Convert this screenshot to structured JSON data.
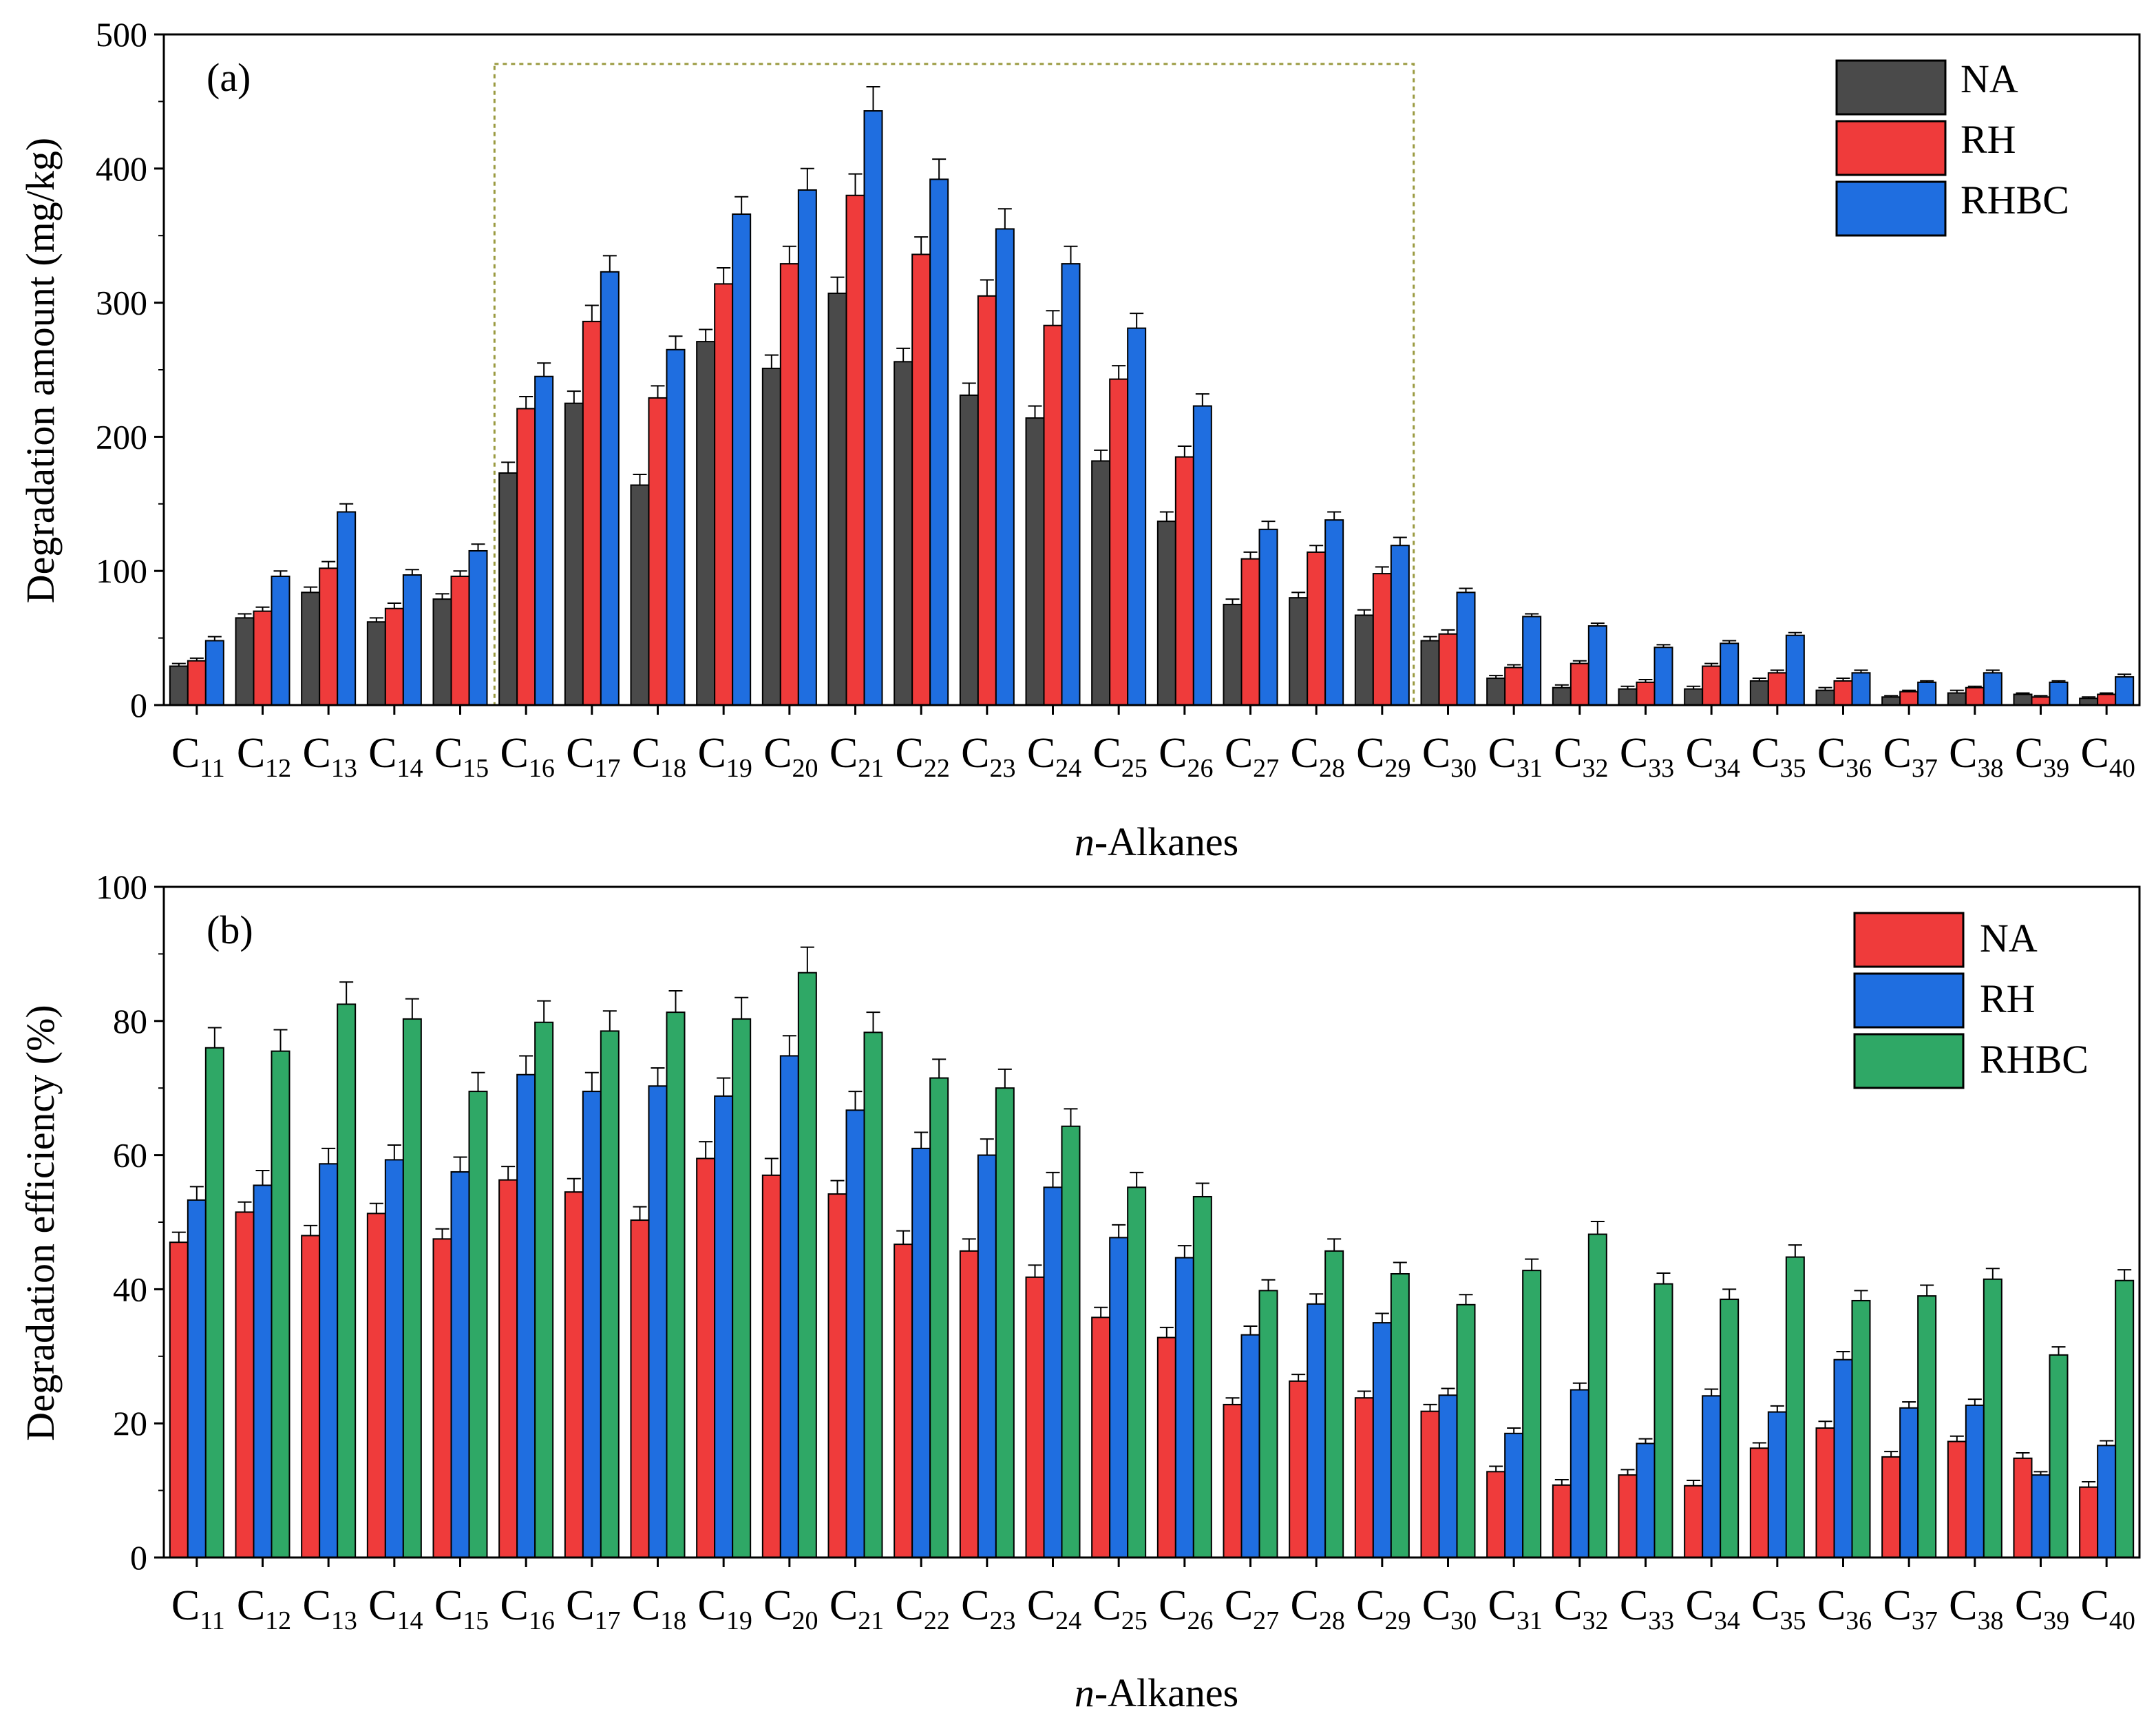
{
  "chart_data": [
    {
      "type": "bar",
      "panel_label": "(a)",
      "title": "",
      "xlabel_prefix": "n",
      "xlabel_rest": "-Alkanes",
      "ylabel": "Degradation amount (mg/kg)",
      "ylim": [
        0,
        500
      ],
      "yticks": [
        "0",
        "100",
        "200",
        "300",
        "400",
        "500"
      ],
      "categories": [
        "C11",
        "C12",
        "C13",
        "C14",
        "C15",
        "C16",
        "C17",
        "C18",
        "C19",
        "C20",
        "C21",
        "C22",
        "C23",
        "C24",
        "C25",
        "C26",
        "C27",
        "C28",
        "C29",
        "C30",
        "C31",
        "C32",
        "C33",
        "C34",
        "C35",
        "C36",
        "C37",
        "C38",
        "C39",
        "C40"
      ],
      "highlight_range": {
        "from": "C16",
        "to": "C29",
        "style": "dotted box"
      },
      "legend": {
        "placement": "top-right"
      },
      "series": [
        {
          "name": "NA",
          "color": "#4a4a4a",
          "values": [
            29,
            65,
            84,
            62,
            79,
            173,
            225,
            164,
            271,
            251,
            307,
            256,
            231,
            214,
            182,
            137,
            75,
            80,
            67,
            48,
            20,
            13,
            12,
            12,
            18,
            11,
            6,
            9,
            8,
            5
          ],
          "errors": [
            2,
            3,
            4,
            3,
            4,
            8,
            9,
            8,
            9,
            10,
            12,
            10,
            9,
            9,
            8,
            7,
            4,
            4,
            4,
            3,
            2,
            2,
            2,
            2,
            2,
            2,
            1,
            2,
            1,
            1
          ]
        },
        {
          "name": "RH",
          "color": "#ef3b3b",
          "values": [
            33,
            70,
            102,
            72,
            96,
            221,
            286,
            229,
            314,
            329,
            380,
            336,
            305,
            283,
            243,
            185,
            109,
            114,
            98,
            53,
            28,
            31,
            17,
            29,
            24,
            18,
            10,
            13,
            6,
            8
          ],
          "errors": [
            2,
            3,
            5,
            4,
            4,
            9,
            12,
            9,
            12,
            13,
            16,
            13,
            12,
            11,
            10,
            8,
            5,
            5,
            5,
            3,
            2,
            2,
            2,
            2,
            2,
            2,
            1,
            1,
            1,
            1
          ]
        },
        {
          "name": "RHBC",
          "color": "#1f6ee0",
          "values": [
            48,
            96,
            144,
            97,
            115,
            245,
            323,
            265,
            366,
            384,
            443,
            392,
            355,
            329,
            281,
            223,
            131,
            138,
            119,
            84,
            66,
            59,
            43,
            46,
            52,
            24,
            17,
            24,
            17,
            21
          ],
          "errors": [
            3,
            4,
            6,
            4,
            5,
            10,
            12,
            10,
            13,
            16,
            18,
            15,
            15,
            13,
            11,
            9,
            6,
            6,
            6,
            3,
            2,
            2,
            2,
            2,
            2,
            2,
            1,
            2,
            1,
            2
          ]
        }
      ]
    },
    {
      "type": "bar",
      "panel_label": "(b)",
      "title": "",
      "xlabel_prefix": "n",
      "xlabel_rest": "-Alkanes",
      "ylabel": "Degradation efficiency (%)",
      "ylim": [
        0,
        100
      ],
      "yticks": [
        "0",
        "20",
        "40",
        "60",
        "80",
        "100"
      ],
      "categories": [
        "C11",
        "C12",
        "C13",
        "C14",
        "C15",
        "C16",
        "C17",
        "C18",
        "C19",
        "C20",
        "C21",
        "C22",
        "C23",
        "C24",
        "C25",
        "C26",
        "C27",
        "C28",
        "C29",
        "C30",
        "C31",
        "C32",
        "C33",
        "C34",
        "C35",
        "C36",
        "C37",
        "C38",
        "C39",
        "C40"
      ],
      "legend": {
        "placement": "top-right"
      },
      "series": [
        {
          "name": "NA",
          "color": "#ef3b3b",
          "values": [
            47,
            51.5,
            48,
            51.3,
            47.5,
            56.3,
            54.5,
            50.3,
            59.5,
            57,
            54.2,
            46.7,
            45.7,
            41.8,
            35.8,
            32.8,
            22.8,
            26.3,
            23.8,
            21.8,
            12.8,
            10.8,
            12.3,
            10.7,
            16.3,
            19.3,
            15,
            17.3,
            14.8,
            10.5
          ],
          "errors": [
            1.5,
            1.5,
            1.5,
            1.5,
            1.5,
            2,
            2,
            2,
            2.5,
            2.5,
            2,
            2,
            1.8,
            1.8,
            1.5,
            1.5,
            1,
            1,
            1,
            1,
            0.8,
            0.8,
            0.8,
            0.8,
            0.8,
            1,
            0.8,
            0.8,
            0.8,
            0.8
          ]
        },
        {
          "name": "RH",
          "color": "#1f6ee0",
          "values": [
            53.3,
            55.5,
            58.7,
            59.3,
            57.5,
            72,
            69.5,
            70.3,
            68.8,
            74.8,
            66.7,
            61,
            60,
            55.2,
            47.7,
            44.7,
            33.2,
            37.8,
            35,
            24.2,
            18.5,
            25,
            17,
            24.1,
            21.7,
            29.5,
            22.3,
            22.7,
            12.3,
            16.7
          ],
          "errors": [
            2,
            2.2,
            2.3,
            2.2,
            2.2,
            2.8,
            2.8,
            2.7,
            2.7,
            3,
            2.8,
            2.4,
            2.4,
            2.2,
            1.9,
            1.8,
            1.3,
            1.5,
            1.4,
            1,
            0.8,
            1,
            0.7,
            1,
            0.9,
            1.2,
            0.9,
            0.9,
            0.5,
            0.7
          ]
        },
        {
          "name": "RHBC",
          "color": "#2fa866",
          "values": [
            76,
            75.5,
            82.5,
            80.3,
            69.5,
            79.8,
            78.5,
            81.3,
            80.3,
            87.2,
            78.3,
            71.5,
            70,
            64.3,
            55.2,
            53.8,
            39.8,
            45.7,
            42.3,
            37.7,
            42.8,
            48.2,
            40.8,
            38.5,
            44.8,
            38.3,
            39,
            41.5,
            30.2,
            41.3
          ],
          "errors": [
            3,
            3.2,
            3.3,
            3,
            2.8,
            3.2,
            3,
            3.2,
            3.2,
            3.8,
            3,
            2.8,
            2.8,
            2.6,
            2.2,
            2,
            1.6,
            1.8,
            1.7,
            1.5,
            1.7,
            1.9,
            1.6,
            1.5,
            1.8,
            1.5,
            1.6,
            1.6,
            1.2,
            1.6
          ]
        }
      ]
    }
  ]
}
